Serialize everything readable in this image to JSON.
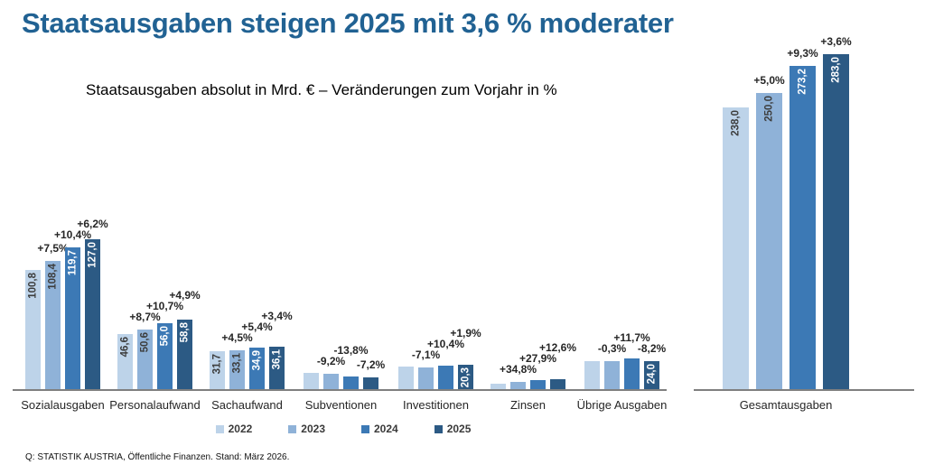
{
  "title": "Staatsausgaben steigen 2025 mit 3,6 % moderater",
  "subtitle": "Staatsausgaben absolut in Mrd. € – Veränderungen zum Vorjahr in %",
  "source": "Q: STATISTIK AUSTRIA, Öffentliche Finanzen. Stand: März 2026.",
  "legend": [
    "2022",
    "2023",
    "2024",
    "2025"
  ],
  "colors": {
    "year_2022": "#BDD3E9",
    "year_2023": "#8FB2D8",
    "year_2024": "#3C79B5",
    "year_2025": "#2C5A84",
    "title_text": "#216293",
    "axis_line": "#7f7f7f",
    "dark_value_text": "#3d3d3d",
    "light_value_text": "#ffffff"
  },
  "chart_data": {
    "type": "bar",
    "unit": "Mrd. €",
    "years": [
      "2022",
      "2023",
      "2024",
      "2025"
    ],
    "legend_position": "bottom",
    "grid": false,
    "title": "Staatsausgaben steigen 2025 mit 3,6 % moderater",
    "subtitle": "Staatsausgaben absolut in Mrd. € – Veränderungen zum Vorjahr in %",
    "groups": [
      {
        "category": "Sozialausgaben",
        "values": [
          100.8,
          108.4,
          119.7,
          127.0
        ],
        "value_labels": [
          "100,8",
          "108,4",
          "119,7",
          "127,0"
        ],
        "pct_labels": [
          null,
          "+7,5%",
          "+10,4%",
          "+6,2%"
        ]
      },
      {
        "category": "Personalaufwand",
        "values": [
          46.6,
          50.6,
          56.0,
          58.8
        ],
        "value_labels": [
          "46,6",
          "50,6",
          "56,0",
          "58,8"
        ],
        "pct_labels": [
          null,
          "+8,7%",
          "+10,7%",
          "+4,9%"
        ]
      },
      {
        "category": "Sachaufwand",
        "values": [
          31.7,
          33.1,
          34.9,
          36.1
        ],
        "value_labels": [
          "31,7",
          "33,1",
          "34,9",
          "36,1"
        ],
        "pct_labels": [
          null,
          "+4,5%",
          "+5,4%",
          "+3,4%"
        ]
      },
      {
        "category": "Subventionen",
        "values": [
          13.9,
          12.6,
          10.9,
          10.1
        ],
        "value_labels": [
          null,
          null,
          null,
          null
        ],
        "pct_labels": [
          null,
          "-9,2%",
          "-13,8%",
          "-7,2%"
        ]
      },
      {
        "category": "Investitionen",
        "values": [
          19.4,
          18.0,
          19.9,
          20.3
        ],
        "value_labels": [
          null,
          null,
          null,
          "20,3"
        ],
        "pct_labels": [
          null,
          "-7,1%",
          "+10,4%",
          "+1,9%"
        ]
      },
      {
        "category": "Zinsen",
        "values": [
          4.4,
          5.9,
          7.6,
          8.5
        ],
        "value_labels": [
          null,
          null,
          null,
          null
        ],
        "pct_labels": [
          null,
          "+34,8%",
          "+27,9%",
          "+12,6%"
        ]
      },
      {
        "category": "Übrige Ausgaben",
        "values": [
          23.5,
          23.4,
          26.1,
          24.0
        ],
        "value_labels": [
          null,
          null,
          null,
          "24,0"
        ],
        "pct_labels": [
          null,
          "-0,3%",
          "+11,7%",
          "-8,2%"
        ]
      },
      {
        "category": "Gesamtausgaben",
        "panel": "right",
        "values": [
          238.0,
          250.0,
          273.2,
          283.0
        ],
        "value_labels": [
          "238,0",
          "250,0",
          "273,2",
          "283,0"
        ],
        "pct_labels": [
          null,
          "+5,0%",
          "+9,3%",
          "+3,6%"
        ]
      }
    ]
  }
}
